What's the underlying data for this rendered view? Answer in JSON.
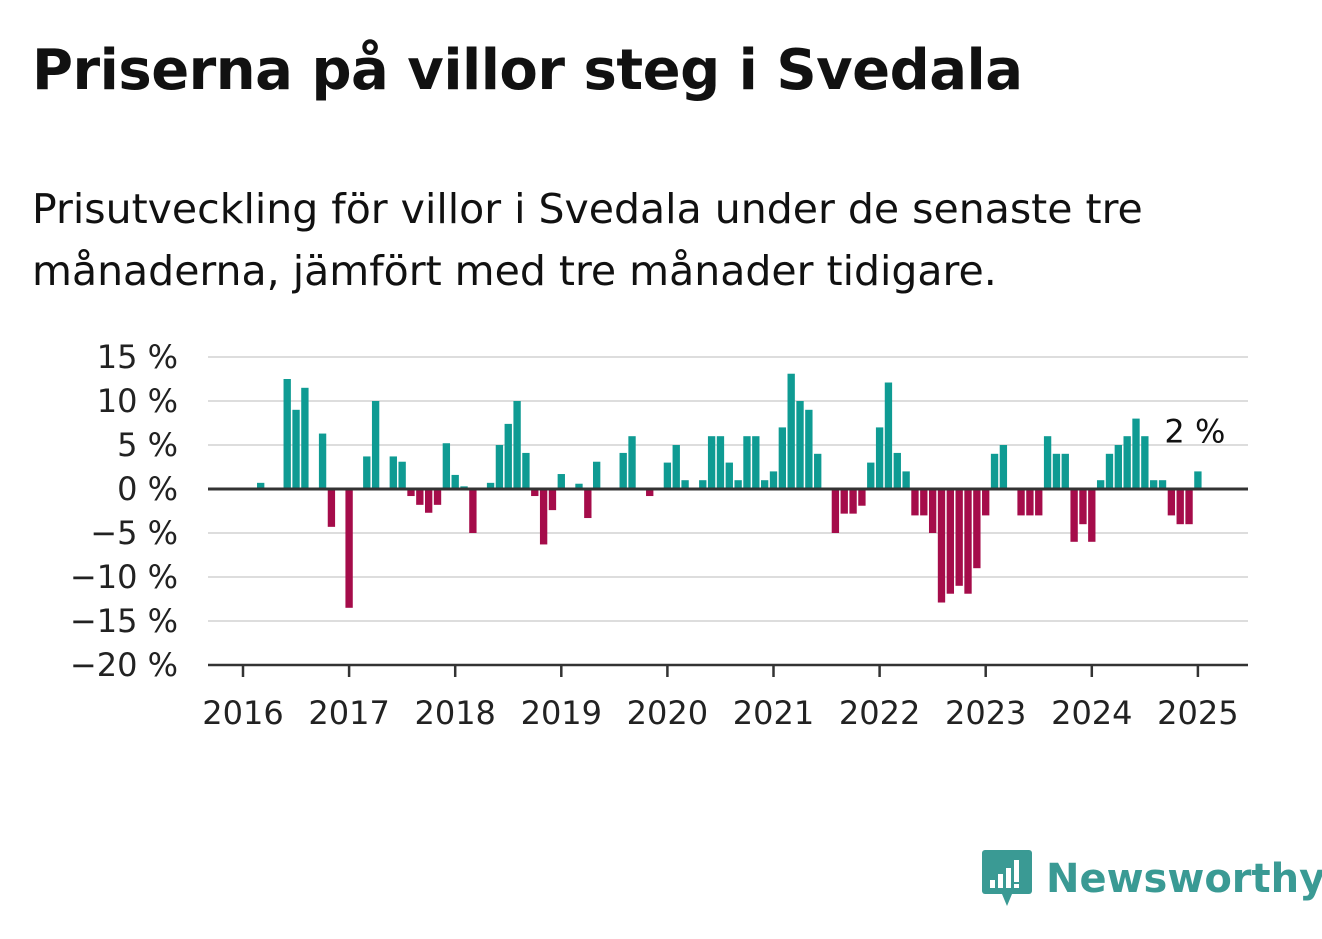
{
  "header": {
    "title": "Priserna på villor steg i Svedala",
    "subtitle": "Prisutveckling för villor i Svedala under de senaste tre månaderna, jämfört med tre månader tidigare."
  },
  "brand": {
    "name": "Newsworthy",
    "icon": "newsworthy-logo-icon",
    "color": "#3a9a94"
  },
  "colors": {
    "positive": "#0f9b93",
    "negative": "#a50c4a",
    "grid": "#dddddd",
    "axis": "#333333"
  },
  "chart_data": {
    "type": "bar",
    "title": "Priserna på villor steg i Svedala",
    "xlabel": "",
    "ylabel": "",
    "ylim": [
      -20,
      15
    ],
    "yticks": [
      15,
      10,
      5,
      0,
      -5,
      -10,
      -15,
      -20
    ],
    "ytick_labels": [
      "15 %",
      "10 %",
      "5 %",
      "0 %",
      "−5 %",
      "−10 %",
      "−15 %",
      "−20 %"
    ],
    "xticks": [
      "2016",
      "2017",
      "2018",
      "2019",
      "2020",
      "2021",
      "2022",
      "2023",
      "2024",
      "2025"
    ],
    "grid": true,
    "end_label": "2 %",
    "start": "2016-01",
    "values": [
      0,
      0,
      0.7,
      0,
      0,
      12.5,
      9,
      11.5,
      0,
      6.3,
      -4.3,
      0,
      -13.5,
      0,
      3.7,
      10,
      0,
      3.7,
      3.1,
      -0.8,
      -1.8,
      -2.7,
      -1.8,
      5.2,
      1.6,
      0.3,
      -5,
      0,
      0.7,
      5,
      7.4,
      10,
      4.1,
      -0.8,
      -6.3,
      -2.4,
      1.7,
      0,
      0.6,
      -3.3,
      3.1,
      0,
      0,
      4.1,
      6,
      0,
      -0.8,
      0,
      3,
      5,
      1,
      0,
      1,
      6,
      6,
      3,
      1,
      6,
      6,
      1,
      2,
      7,
      13.1,
      10,
      9,
      4,
      0,
      -5,
      -2.8,
      -2.8,
      -1.9,
      3,
      7,
      12.1,
      4.1,
      2,
      -3,
      -3,
      -5,
      -12.9,
      -11.9,
      -11,
      -11.9,
      -9,
      -3,
      4,
      5,
      0,
      -3,
      -3,
      -3,
      6,
      4,
      4,
      -6,
      -4,
      -6,
      1,
      4,
      5,
      6,
      8,
      6,
      1,
      1,
      -3,
      -4,
      -4,
      2
    ]
  }
}
